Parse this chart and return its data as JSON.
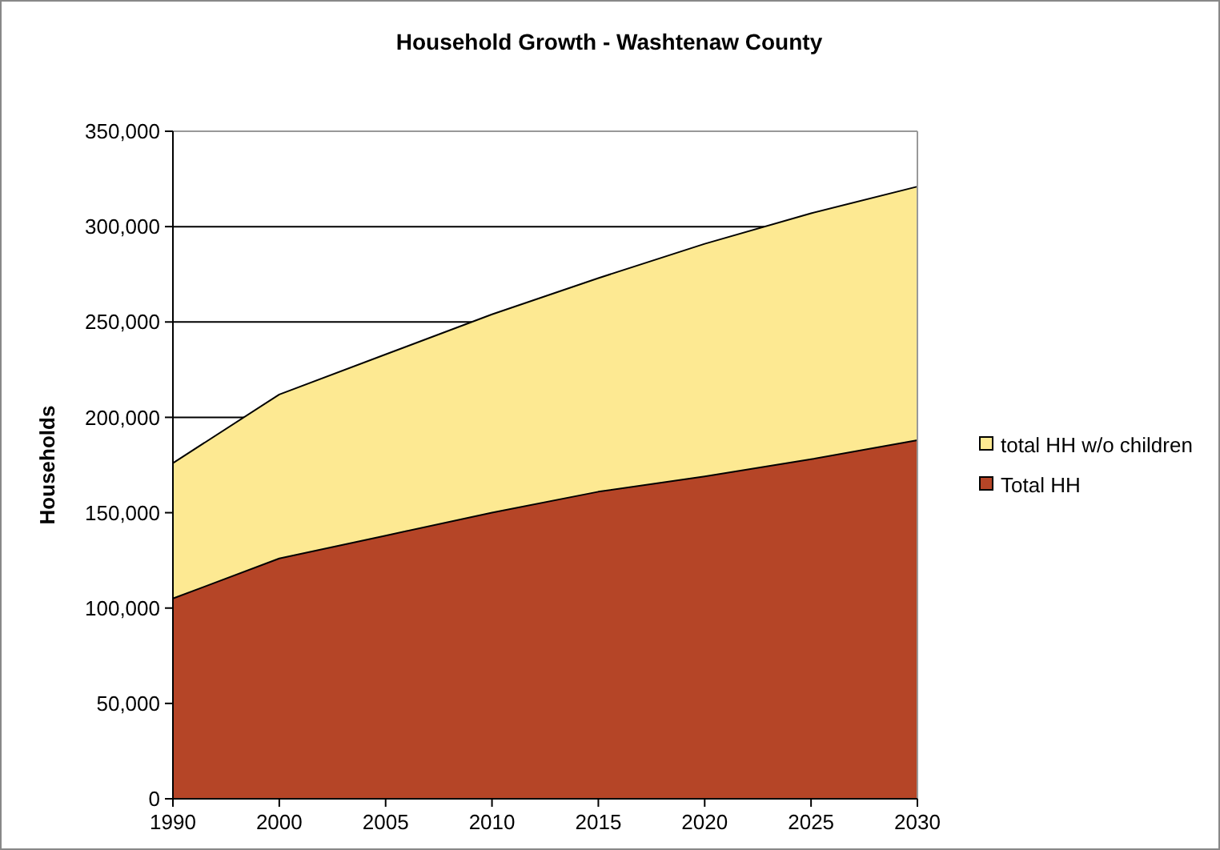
{
  "chart_data": {
    "type": "area",
    "title": "Household Growth - Washtenaw County",
    "ylabel": "Households",
    "categories": [
      "1990",
      "2000",
      "2005",
      "2010",
      "2015",
      "2020",
      "2025",
      "2030"
    ],
    "series": [
      {
        "name": "total HH w/o children",
        "color": "#fde992",
        "values": [
          176000,
          212000,
          233000,
          254000,
          273000,
          291000,
          307000,
          321000
        ]
      },
      {
        "name": "Total HH",
        "color": "#b54527",
        "values": [
          105000,
          126000,
          138000,
          150000,
          161000,
          169000,
          178000,
          188000
        ]
      }
    ],
    "ylim": [
      0,
      350000
    ],
    "yticks": [
      {
        "value": 0,
        "label": "0"
      },
      {
        "value": 50000,
        "label": "50,000"
      },
      {
        "value": 100000,
        "label": "100,000"
      },
      {
        "value": 150000,
        "label": "150,000"
      },
      {
        "value": 200000,
        "label": "200,000"
      },
      {
        "value": 250000,
        "label": "250,000"
      },
      {
        "value": 300000,
        "label": "300,000"
      },
      {
        "value": 350000,
        "label": "350,000"
      }
    ],
    "grid": "y",
    "legend": "right"
  }
}
